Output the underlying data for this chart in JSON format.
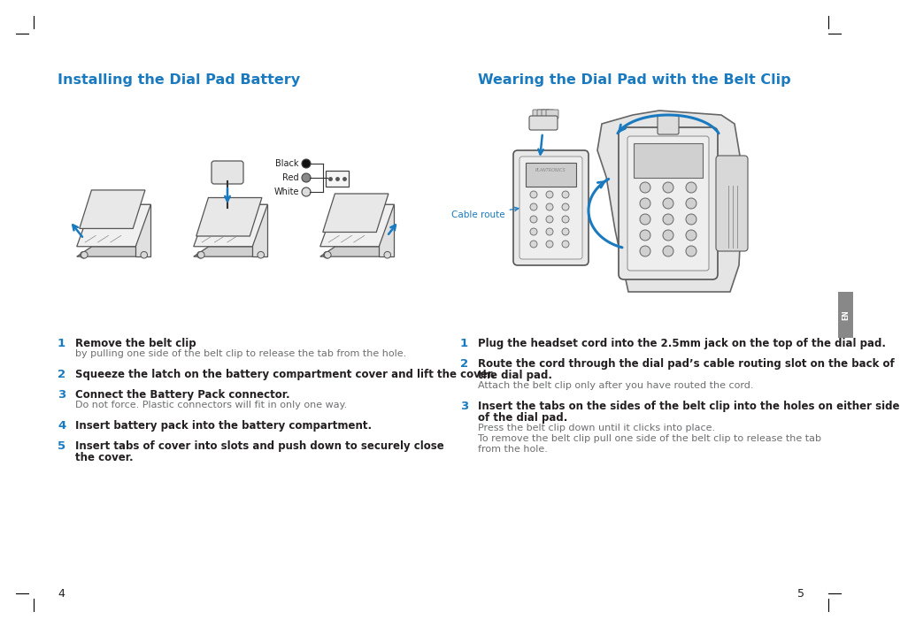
{
  "bg_color": "#ffffff",
  "heading_color": "#1a7abf",
  "text_color": "#231f20",
  "gray_color": "#6d6e71",
  "number_color": "#1a7abf",
  "line_color": "#555555",
  "left_title": "Installing the Dial Pad Battery",
  "right_title": "Wearing the Dial Pad with the Belt Clip",
  "left_steps": [
    {
      "num": "1",
      "bold": "Remove the belt clip",
      "normal": "by pulling one side of the belt clip to release the tab from the hole."
    },
    {
      "num": "2",
      "bold": "Squeeze the latch on the battery compartment cover and lift the cover.",
      "normal": ""
    },
    {
      "num": "3",
      "bold": "Connect the Battery Pack connector.",
      "normal": "Do not force. Plastic connectors will fit in only one way."
    },
    {
      "num": "4",
      "bold": "Insert battery pack into the battery compartment.",
      "normal": ""
    },
    {
      "num": "5",
      "bold": "Insert tabs of cover into slots and push down to securely close\nthe cover.",
      "normal": ""
    }
  ],
  "right_steps": [
    {
      "num": "1",
      "bold": "Plug the headset cord into the 2.5mm jack on the top of the dial pad.",
      "normal": ""
    },
    {
      "num": "2",
      "bold": "Route the cord through the dial pad’s cable routing slot on the back of\nthe dial pad.",
      "normal": "Attach the belt clip only after you have routed the cord."
    },
    {
      "num": "3",
      "bold": "Insert the tabs on the sides of the belt clip into the holes on either side\nof the dial pad.",
      "normal": "Press the belt clip down until it clicks into place.\n\nTo remove the belt clip pull one side of the belt clip to release the tab\nfrom the hole."
    }
  ],
  "cable_route_label": "Cable route",
  "battery_labels": [
    "Black",
    "Red",
    "White"
  ],
  "page_left": "4",
  "page_right": "5"
}
